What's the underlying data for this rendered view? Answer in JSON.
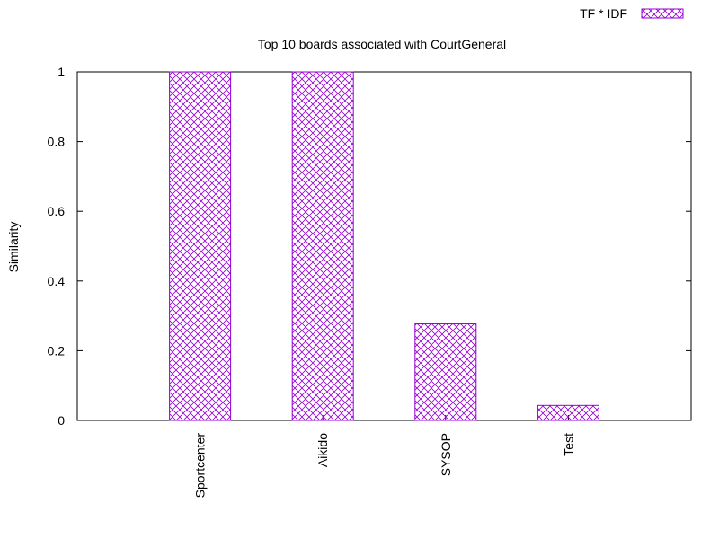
{
  "chart_data": {
    "type": "bar",
    "title": "Top 10 boards associated with CourtGeneral",
    "xlabel": "",
    "ylabel": "Similarity",
    "categories": [
      "Sportcenter",
      "Aikido",
      "SYSOP",
      "Test"
    ],
    "series": [
      {
        "name": "TF * IDF",
        "values": [
          1.0,
          1.0,
          0.277,
          0.043
        ]
      }
    ],
    "ylim": [
      0,
      1
    ],
    "yticks": [
      "0",
      "0.2",
      "0.4",
      "0.6",
      "0.8",
      "1"
    ],
    "grid": false,
    "legend_position": "top-right",
    "colors": {
      "bar": "#9400d3",
      "axis": "#000000"
    }
  }
}
